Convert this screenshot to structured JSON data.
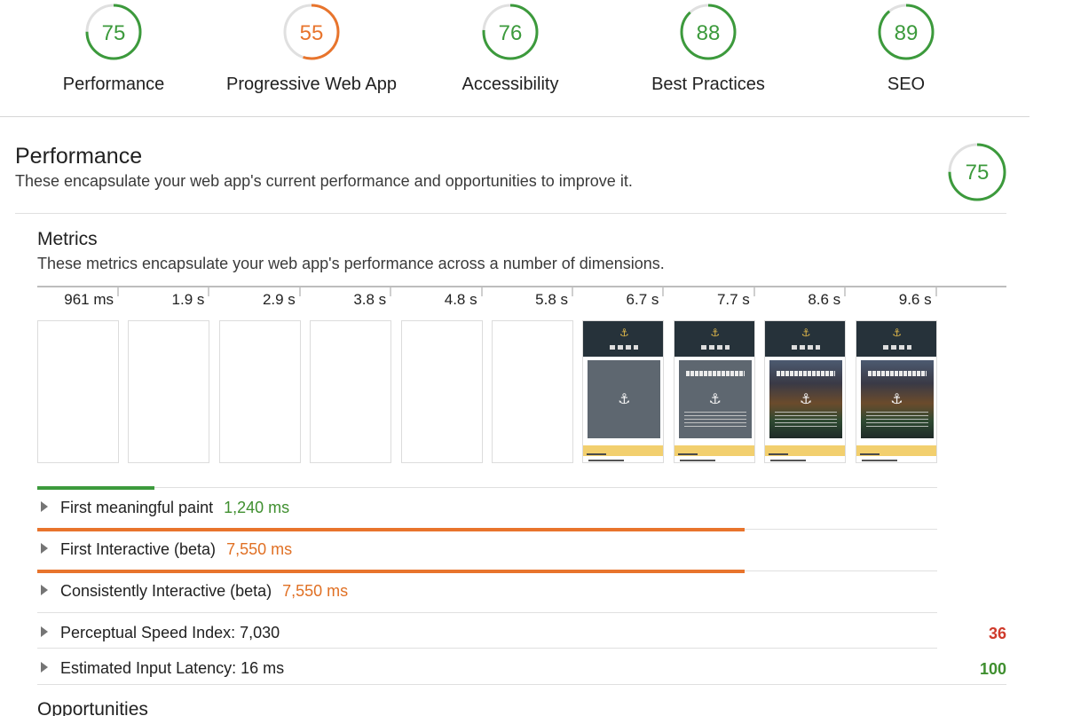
{
  "colors": {
    "good": "#3c9a3c",
    "average": "#e8742c",
    "poor": "#d23b2e",
    "track": "#e0e0e0",
    "pass_text": "#3f8f2f",
    "avg_text": "#e07024",
    "fail_text": "#cf3a2b"
  },
  "categories": [
    {
      "label": "Performance",
      "score": 75,
      "rating": "good"
    },
    {
      "label": "Progressive Web App",
      "score": 55,
      "rating": "average"
    },
    {
      "label": "Accessibility",
      "score": 76,
      "rating": "good"
    },
    {
      "label": "Best Practices",
      "score": 88,
      "rating": "good"
    },
    {
      "label": "SEO",
      "score": 89,
      "rating": "good"
    }
  ],
  "performance": {
    "title": "Performance",
    "description": "These encapsulate your web app's current performance and opportunities to improve it.",
    "score": 75
  },
  "metrics": {
    "title": "Metrics",
    "description": "These metrics encapsulate your web app's performance across a number of dimensions.",
    "filmstrip": [
      {
        "time": "961 ms",
        "painted": false
      },
      {
        "time": "1.9 s",
        "painted": false
      },
      {
        "time": "2.9 s",
        "painted": false
      },
      {
        "time": "3.8 s",
        "painted": false
      },
      {
        "time": "4.8 s",
        "painted": false
      },
      {
        "time": "5.8 s",
        "painted": false
      },
      {
        "time": "6.7 s",
        "painted": true,
        "hero": "plain"
      },
      {
        "time": "7.7 s",
        "painted": true,
        "hero": "plain"
      },
      {
        "time": "8.6 s",
        "painted": true,
        "hero": "city"
      },
      {
        "time": "9.6 s",
        "painted": true,
        "hero": "city"
      }
    ],
    "items": [
      {
        "name": "First meaningful paint",
        "value": "1,240 ms",
        "rating": "good",
        "timeline_fraction": 0.13
      },
      {
        "name": "First Interactive (beta)",
        "value": "7,550 ms",
        "rating": "average",
        "timeline_fraction": 0.786
      },
      {
        "name": "Consistently Interactive (beta)",
        "value": "7,550 ms",
        "rating": "average",
        "timeline_fraction": 0.786
      },
      {
        "name": "Perceptual Speed Index: 7,030",
        "score": "36",
        "rating": "poor"
      },
      {
        "name": "Estimated Input Latency: 16 ms",
        "score": "100",
        "rating": "good"
      }
    ]
  },
  "opportunities": {
    "title": "Opportunities"
  }
}
